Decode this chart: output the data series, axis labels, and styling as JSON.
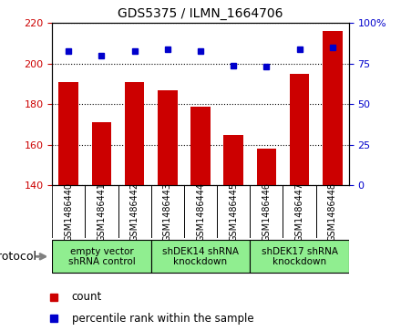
{
  "title": "GDS5375 / ILMN_1664706",
  "samples": [
    "GSM1486440",
    "GSM1486441",
    "GSM1486442",
    "GSM1486443",
    "GSM1486444",
    "GSM1486445",
    "GSM1486446",
    "GSM1486447",
    "GSM1486448"
  ],
  "counts": [
    191,
    171,
    191,
    187,
    179,
    165,
    158,
    195,
    216
  ],
  "percentiles": [
    83,
    80,
    83,
    84,
    83,
    74,
    73,
    84,
    85
  ],
  "ylim_left": [
    140,
    220
  ],
  "ylim_right": [
    0,
    100
  ],
  "yticks_left": [
    140,
    160,
    180,
    200,
    220
  ],
  "yticks_right": [
    0,
    25,
    50,
    75,
    100
  ],
  "bar_color": "#cc0000",
  "dot_color": "#0000cc",
  "group_color": "#90ee90",
  "protocol_groups": [
    {
      "label": "empty vector\nshRNA control",
      "start": 0,
      "end": 3
    },
    {
      "label": "shDEK14 shRNA\nknockdown",
      "start": 3,
      "end": 6
    },
    {
      "label": "shDEK17 shRNA\nknockdown",
      "start": 6,
      "end": 9
    }
  ],
  "protocol_label": "protocol"
}
